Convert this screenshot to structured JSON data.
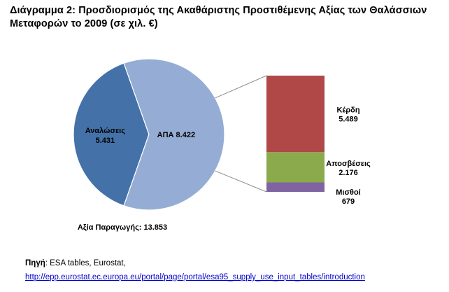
{
  "title": "Διάγραμμα 2: Προσδιορισμός της Ακαθάριστης Προστιθέμενης Αξίας των Θαλάσσιων Μεταφορών το 2009 (σε χιλ. €)",
  "chart_data": {
    "type": "pie",
    "pie": {
      "slices": [
        {
          "label": "Αναλώσεις",
          "value": 5431,
          "value_label": "5.431",
          "color": "#4472a8"
        },
        {
          "label": "ΑΠΑ",
          "value": 8422,
          "value_label": "8.422",
          "color": "#95add4"
        }
      ],
      "total_label": "Αξία Παραγωγής:",
      "total_value": "13.853"
    },
    "bar": {
      "type": "stacked_bar",
      "segments": [
        {
          "label": "Μισθοί",
          "value": 679,
          "value_label": "679",
          "color": "#8064a2"
        },
        {
          "label": "Αποσβέσεις",
          "value": 2176,
          "value_label": "2.176",
          "color": "#8aaa4c"
        },
        {
          "label": "Κέρδη",
          "value": 5489,
          "value_label": "5.489",
          "color": "#b04848"
        }
      ]
    }
  },
  "source": {
    "label": "Πηγή",
    "text": ": ESA tables, Eurostat,",
    "url": "http://epp.eurostat.ec.europa.eu/portal/page/portal/esa95_supply_use_input_tables/introduction"
  }
}
